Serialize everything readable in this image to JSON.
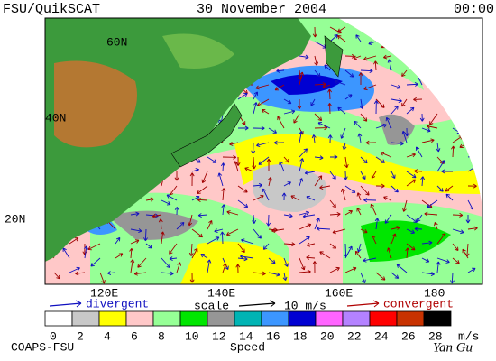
{
  "header": {
    "title": "FSU/QuikSCAT",
    "date": "30 November 2004",
    "time": "00:00"
  },
  "map": {
    "lat_labels": [
      "60N",
      "40N",
      "20N"
    ],
    "lon_labels": [
      "120E",
      "140E",
      "160E",
      "180"
    ]
  },
  "legend": {
    "divergent": "divergent",
    "scale": "scale",
    "scale_value": "10 m/s",
    "convergent": "convergent"
  },
  "colorbar": {
    "ticks": [
      0,
      2,
      4,
      6,
      8,
      10,
      12,
      14,
      16,
      18,
      20,
      22,
      24,
      26,
      28
    ],
    "unit": "m/s",
    "title": "Speed",
    "colors": [
      "#ffffff",
      "#c8c8c8",
      "#ffff00",
      "#ffc8c8",
      "#96ff96",
      "#00e600",
      "#969696",
      "#00b4b4",
      "#3c96ff",
      "#0000d2",
      "#ff64ff",
      "#b482ff",
      "#ff0000",
      "#c83200",
      "#000000"
    ]
  },
  "footer": {
    "source": "COAPS-FSU",
    "signature": "Yan Gu"
  }
}
